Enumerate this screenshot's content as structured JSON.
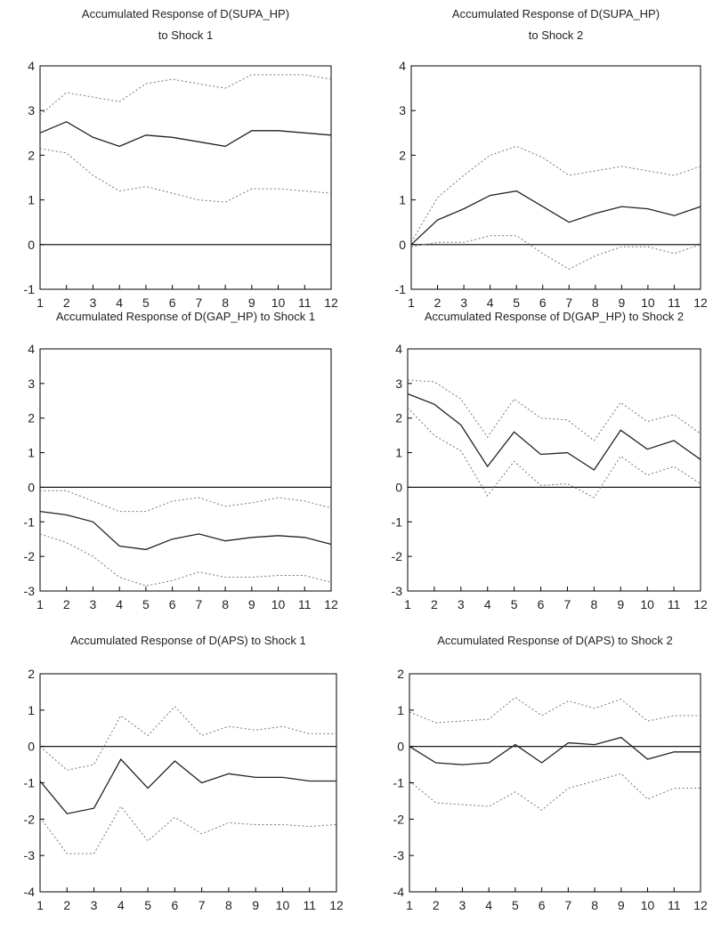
{
  "chart_data": [
    {
      "type": "line",
      "title": [
        "Accumulated Response of D(SUPA_HP)",
        "to Shock 1"
      ],
      "x": [
        1,
        2,
        3,
        4,
        5,
        6,
        7,
        8,
        9,
        10,
        11,
        12
      ],
      "ylim": [
        -1,
        4
      ],
      "yticks": [
        -1,
        0,
        1,
        2,
        3,
        4
      ],
      "series": [
        {
          "role": "upper",
          "values": [
            2.9,
            3.4,
            3.3,
            3.2,
            3.6,
            3.7,
            3.6,
            3.5,
            3.8,
            3.8,
            3.8,
            3.7
          ]
        },
        {
          "role": "estimate",
          "values": [
            2.5,
            2.75,
            2.4,
            2.2,
            2.45,
            2.4,
            2.3,
            2.2,
            2.55,
            2.55,
            2.5,
            2.45
          ]
        },
        {
          "role": "lower",
          "values": [
            2.15,
            2.05,
            1.55,
            1.2,
            1.3,
            1.15,
            1.0,
            0.95,
            1.25,
            1.25,
            1.2,
            1.15
          ]
        }
      ]
    },
    {
      "type": "line",
      "title": [
        "Accumulated Response of D(SUPA_HP)",
        "to Shock 2"
      ],
      "x": [
        1,
        2,
        3,
        4,
        5,
        6,
        7,
        8,
        9,
        10,
        11,
        12
      ],
      "ylim": [
        -1,
        4
      ],
      "yticks": [
        -1,
        0,
        1,
        2,
        3,
        4
      ],
      "series": [
        {
          "role": "upper",
          "values": [
            0.05,
            1.05,
            1.55,
            2.0,
            2.2,
            1.95,
            1.55,
            1.65,
            1.75,
            1.65,
            1.55,
            1.75
          ]
        },
        {
          "role": "estimate",
          "values": [
            0.0,
            0.55,
            0.8,
            1.1,
            1.2,
            0.85,
            0.5,
            0.7,
            0.85,
            0.8,
            0.65,
            0.85
          ]
        },
        {
          "role": "lower",
          "values": [
            -0.05,
            0.05,
            0.05,
            0.2,
            0.2,
            -0.2,
            -0.55,
            -0.25,
            -0.05,
            -0.05,
            -0.2,
            0.0
          ]
        }
      ]
    },
    {
      "type": "line",
      "title": [
        "Accumulated Response of D(GAP_HP)  to Shock 1"
      ],
      "x": [
        1,
        2,
        3,
        4,
        5,
        6,
        7,
        8,
        9,
        10,
        11,
        12
      ],
      "ylim": [
        -3,
        4
      ],
      "yticks": [
        -3,
        -2,
        -1,
        0,
        1,
        2,
        3,
        4
      ],
      "series": [
        {
          "role": "upper",
          "values": [
            -0.1,
            -0.1,
            -0.4,
            -0.7,
            -0.7,
            -0.4,
            -0.3,
            -0.55,
            -0.45,
            -0.3,
            -0.4,
            -0.6
          ]
        },
        {
          "role": "estimate",
          "values": [
            -0.7,
            -0.8,
            -1.0,
            -1.7,
            -1.8,
            -1.5,
            -1.35,
            -1.55,
            -1.45,
            -1.4,
            -1.45,
            -1.65
          ]
        },
        {
          "role": "lower",
          "values": [
            -1.35,
            -1.6,
            -2.0,
            -2.6,
            -2.85,
            -2.7,
            -2.45,
            -2.6,
            -2.6,
            -2.55,
            -2.55,
            -2.75
          ]
        }
      ]
    },
    {
      "type": "line",
      "title": [
        "Accumulated Response of D(GAP_HP) to Shock 2"
      ],
      "x": [
        1,
        2,
        3,
        4,
        5,
        6,
        7,
        8,
        9,
        10,
        11,
        12
      ],
      "ylim": [
        -3,
        4
      ],
      "yticks": [
        -3,
        -2,
        -1,
        0,
        1,
        2,
        3,
        4
      ],
      "series": [
        {
          "role": "upper",
          "values": [
            3.1,
            3.05,
            2.55,
            1.45,
            2.55,
            2.0,
            1.95,
            1.35,
            2.45,
            1.9,
            2.1,
            1.55
          ]
        },
        {
          "role": "estimate",
          "values": [
            2.7,
            2.4,
            1.8,
            0.6,
            1.6,
            0.95,
            1.0,
            0.5,
            1.65,
            1.1,
            1.35,
            0.8
          ]
        },
        {
          "role": "lower",
          "values": [
            2.3,
            1.5,
            1.05,
            -0.25,
            0.75,
            0.05,
            0.1,
            -0.3,
            0.9,
            0.35,
            0.6,
            0.1
          ]
        }
      ]
    },
    {
      "type": "line",
      "title": [
        "Accumulated Response of D(APS) to Shock 1"
      ],
      "x": [
        1,
        2,
        3,
        4,
        5,
        6,
        7,
        8,
        9,
        10,
        11,
        12
      ],
      "ylim": [
        -4,
        2
      ],
      "yticks": [
        -4,
        -3,
        -2,
        -1,
        0,
        1,
        2
      ],
      "series": [
        {
          "role": "upper",
          "values": [
            0.0,
            -0.65,
            -0.5,
            0.85,
            0.3,
            1.1,
            0.3,
            0.55,
            0.45,
            0.55,
            0.35,
            0.35
          ]
        },
        {
          "role": "estimate",
          "values": [
            -0.95,
            -1.85,
            -1.7,
            -0.35,
            -1.15,
            -0.4,
            -1.0,
            -0.75,
            -0.85,
            -0.85,
            -0.95,
            -0.95
          ]
        },
        {
          "role": "lower",
          "values": [
            -1.95,
            -2.95,
            -2.95,
            -1.65,
            -2.6,
            -1.95,
            -2.4,
            -2.1,
            -2.15,
            -2.15,
            -2.2,
            -2.15
          ]
        }
      ]
    },
    {
      "type": "line",
      "title": [
        "Accumulated Response of D(APS) to Shock 2"
      ],
      "x": [
        1,
        2,
        3,
        4,
        5,
        6,
        7,
        8,
        9,
        10,
        11,
        12
      ],
      "ylim": [
        -4,
        2
      ],
      "yticks": [
        -4,
        -3,
        -2,
        -1,
        0,
        1,
        2
      ],
      "series": [
        {
          "role": "upper",
          "values": [
            0.95,
            0.65,
            0.7,
            0.75,
            1.35,
            0.85,
            1.25,
            1.05,
            1.3,
            0.7,
            0.85,
            0.85
          ]
        },
        {
          "role": "estimate",
          "values": [
            0.0,
            -0.45,
            -0.5,
            -0.45,
            0.05,
            -0.45,
            0.1,
            0.05,
            0.25,
            -0.35,
            -0.15,
            -0.15
          ]
        },
        {
          "role": "lower",
          "values": [
            -0.95,
            -1.55,
            -1.6,
            -1.65,
            -1.25,
            -1.75,
            -1.15,
            -0.95,
            -0.75,
            -1.45,
            -1.15,
            -1.15
          ]
        }
      ]
    }
  ]
}
